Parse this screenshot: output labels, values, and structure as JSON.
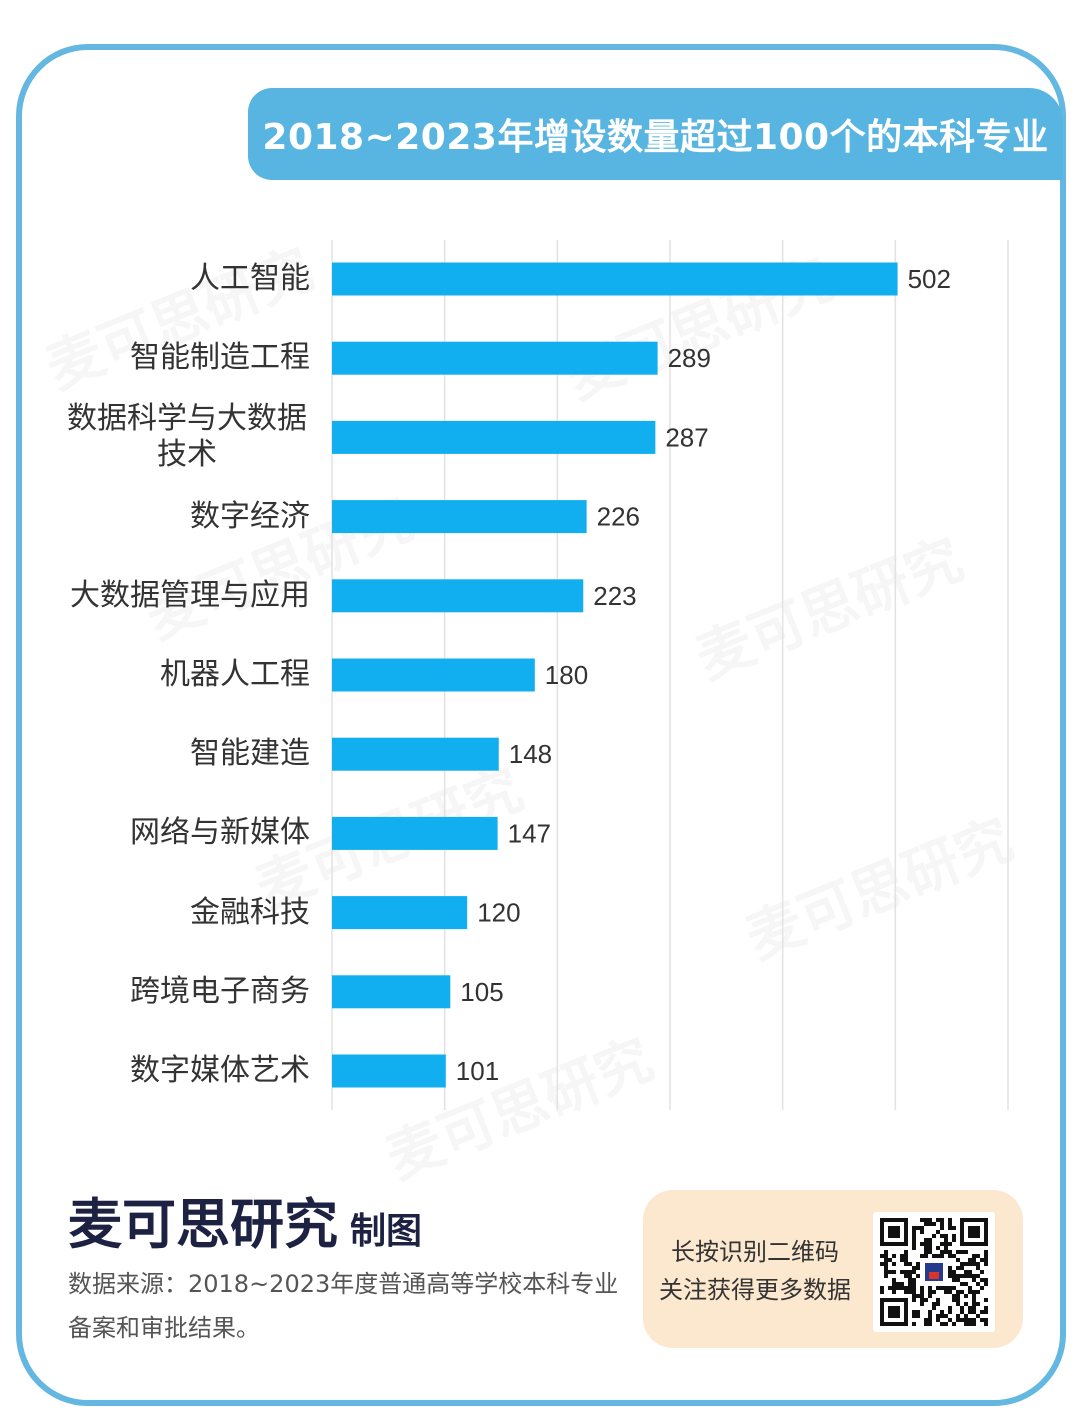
{
  "chart_data": {
    "type": "bar",
    "orientation": "horizontal",
    "title": "2018~2023年增设数量超过100个的本科专业",
    "categories": [
      "人工智能",
      "智能制造工程",
      "数据科学与大数据技术",
      "数字经济",
      "大数据管理与应用",
      "机器人工程",
      "智能建造",
      "网络与新媒体",
      "金融科技",
      "跨境电子商务",
      "数字媒体艺术"
    ],
    "values": [
      502,
      289,
      287,
      226,
      223,
      180,
      148,
      147,
      120,
      105,
      101
    ],
    "xlim": [
      0,
      600
    ],
    "grid": true,
    "data_labels": true
  },
  "footer": {
    "brand": "麦可思研究",
    "brand_suffix": "制图",
    "source_lines": [
      "数据来源：2018~2023年度普通高等学校本科专业",
      "备案和审批结果。"
    ]
  },
  "qr_box": {
    "lines": [
      "长按识别二维码",
      "关注获得更多数据"
    ],
    "icon": "qr-code-icon"
  },
  "watermark": "麦可思研究",
  "colors": {
    "frame_border": "#63b7e0",
    "banner": "#58b4e0",
    "bar": "#11aff0",
    "qr_box": "#fce7cf",
    "brand_text": "#1d2142"
  }
}
